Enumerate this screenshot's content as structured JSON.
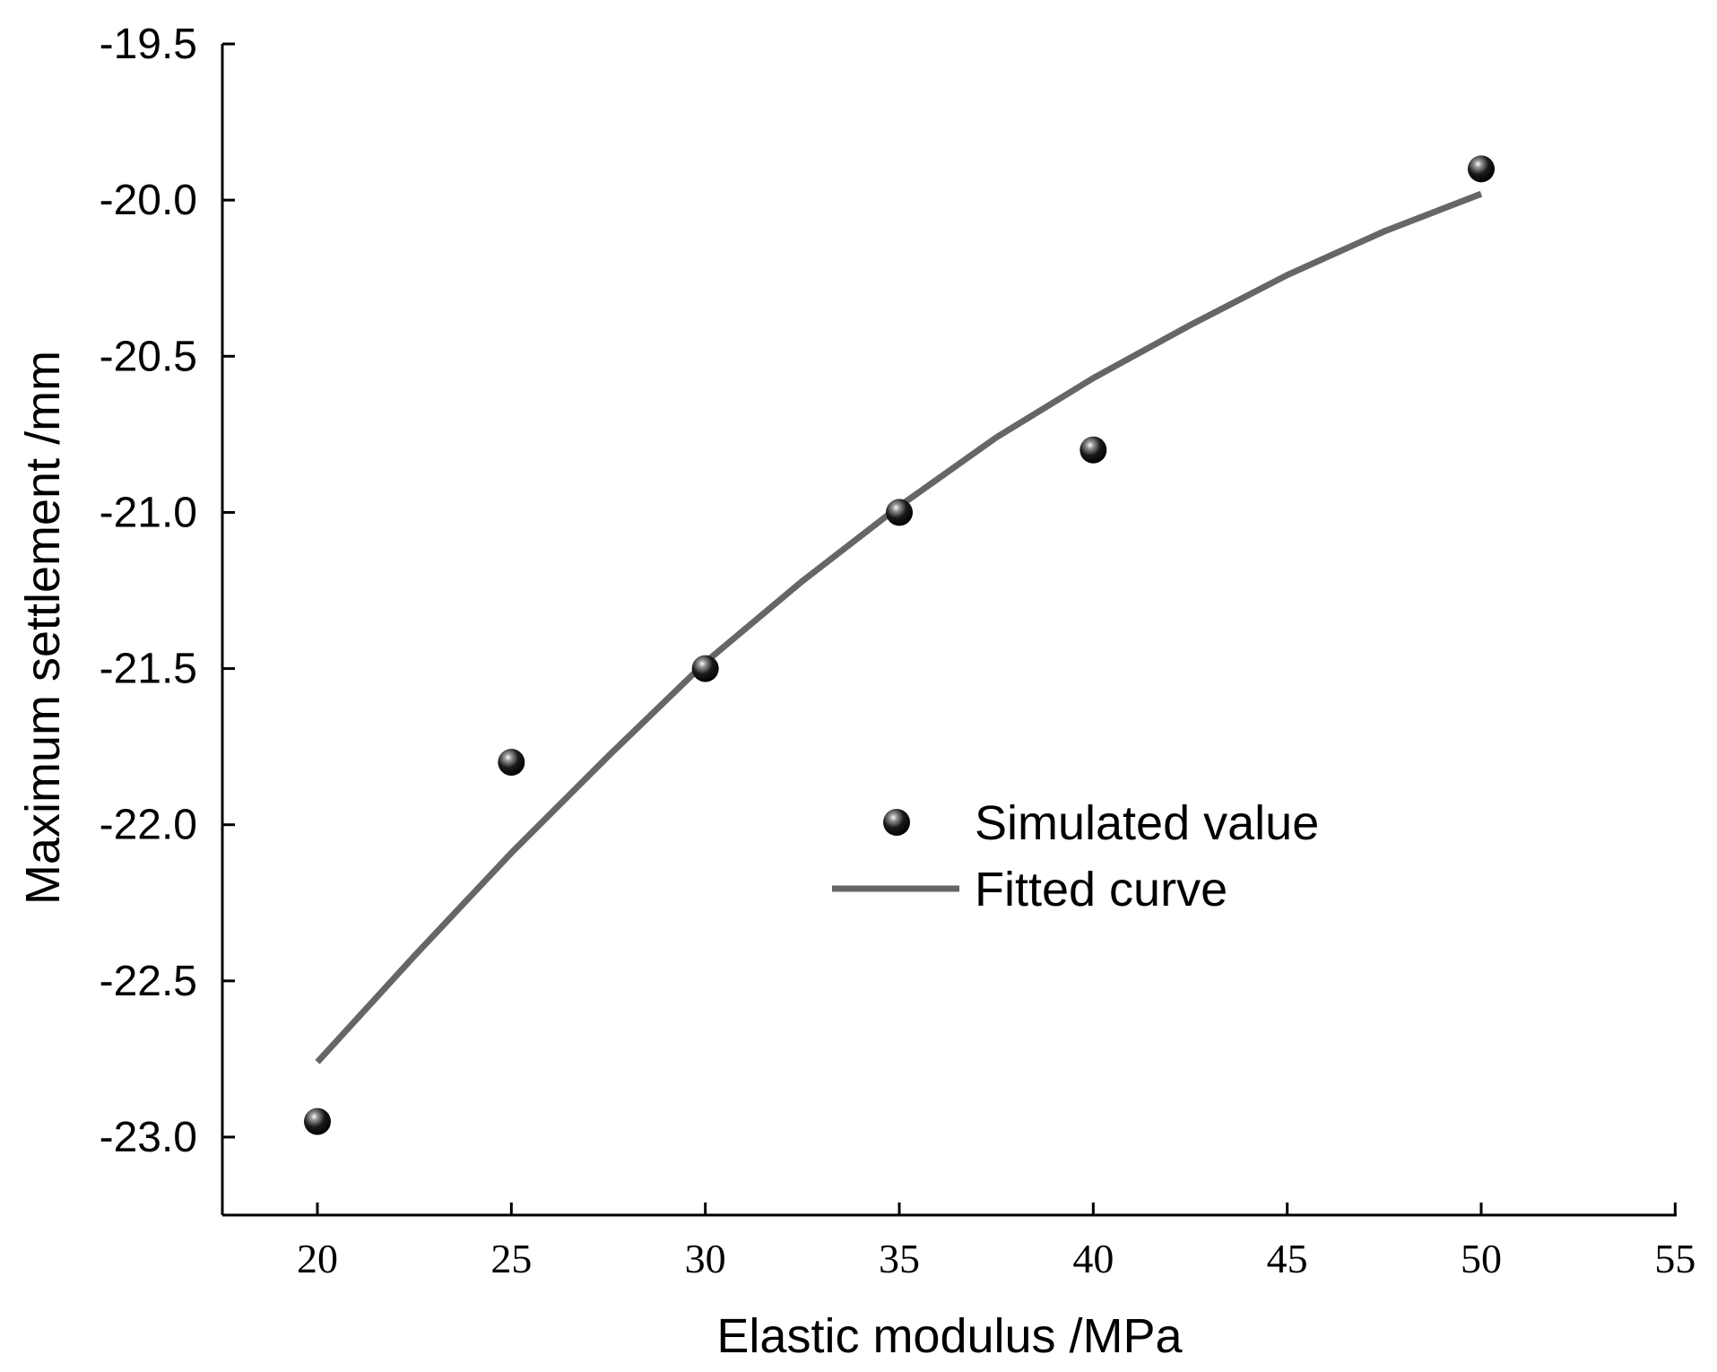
{
  "chart_data": {
    "type": "scatter",
    "xlabel": "Elastic modulus /MPa",
    "ylabel": "Maximum settlement /mm",
    "xlim": [
      17.5,
      55
    ],
    "ylim": [
      -23.25,
      -19.5
    ],
    "x_ticks": [
      20,
      25,
      30,
      35,
      40,
      45,
      50,
      55
    ],
    "x_tick_labels": [
      "20",
      "25",
      "30",
      "35",
      "40",
      "45",
      "50",
      "55"
    ],
    "y_ticks": [
      -19.5,
      -20.0,
      -20.5,
      -21.0,
      -21.5,
      -22.0,
      -22.5,
      -23.0
    ],
    "y_tick_labels": [
      "-19.5",
      "-20.0",
      "-20.5",
      "-21.0",
      "-21.5",
      "-22.0",
      "-22.5",
      "-23.0"
    ],
    "grid": false,
    "legend_position": "center-right",
    "series": [
      {
        "name": "Simulated value",
        "kind": "scatter",
        "color": "#111111",
        "x": [
          20,
          25,
          30,
          35,
          40,
          50
        ],
        "y": [
          -22.95,
          -21.8,
          -21.5,
          -21.0,
          -20.8,
          -19.9
        ]
      },
      {
        "name": "Fitted curve",
        "kind": "line",
        "color": "#666666",
        "x": [
          20,
          22.5,
          25,
          27.5,
          30,
          32.5,
          35,
          37.5,
          40,
          42.5,
          45,
          47.5,
          50
        ],
        "y": [
          -22.76,
          -22.42,
          -22.09,
          -21.78,
          -21.48,
          -21.22,
          -20.98,
          -20.76,
          -20.57,
          -20.4,
          -20.24,
          -20.1,
          -19.98
        ]
      }
    ]
  }
}
